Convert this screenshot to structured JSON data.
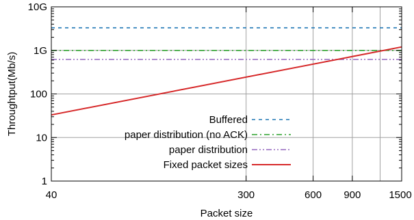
{
  "chart_data": {
    "type": "line",
    "title": "",
    "xlabel": "Packet size",
    "ylabel": "Throughtput(Mb/s)",
    "x_scale": "log",
    "y_scale": "log",
    "xlim": [
      40,
      1500
    ],
    "ylim": [
      1,
      10000
    ],
    "x_ticks": [
      {
        "value": 40,
        "label": "40"
      },
      {
        "value": 300,
        "label": "300"
      },
      {
        "value": 600,
        "label": "600"
      },
      {
        "value": 900,
        "label": "900"
      },
      {
        "value": 1500,
        "label": "1500"
      }
    ],
    "x_gridlines": [
      300,
      600,
      900,
      1200
    ],
    "y_ticks": [
      {
        "value": 1,
        "label": "1"
      },
      {
        "value": 10,
        "label": "10"
      },
      {
        "value": 100,
        "label": "100"
      },
      {
        "value": 1000,
        "label": "1G"
      },
      {
        "value": 10000,
        "label": "10G"
      }
    ],
    "grid": true,
    "legend": {
      "placement": "center-right"
    },
    "series": [
      {
        "name": "Buffered",
        "color": "#1f77b4",
        "dash": "dashed",
        "x": [
          40,
          1500
        ],
        "values": [
          3300,
          3300
        ]
      },
      {
        "name": "paper distribution (no ACK)",
        "color": "#2ca02c",
        "dash": "dash-dot",
        "x": [
          40,
          1500
        ],
        "values": [
          1000,
          1000
        ]
      },
      {
        "name": "paper distribution",
        "color": "#9467bd",
        "dash": "dash-dot-dot",
        "x": [
          40,
          1500
        ],
        "values": [
          620,
          620
        ]
      },
      {
        "name": "Fixed packet sizes",
        "color": "#d62728",
        "dash": "solid",
        "x": [
          40,
          1500
        ],
        "values": [
          33,
          1200
        ]
      }
    ]
  }
}
